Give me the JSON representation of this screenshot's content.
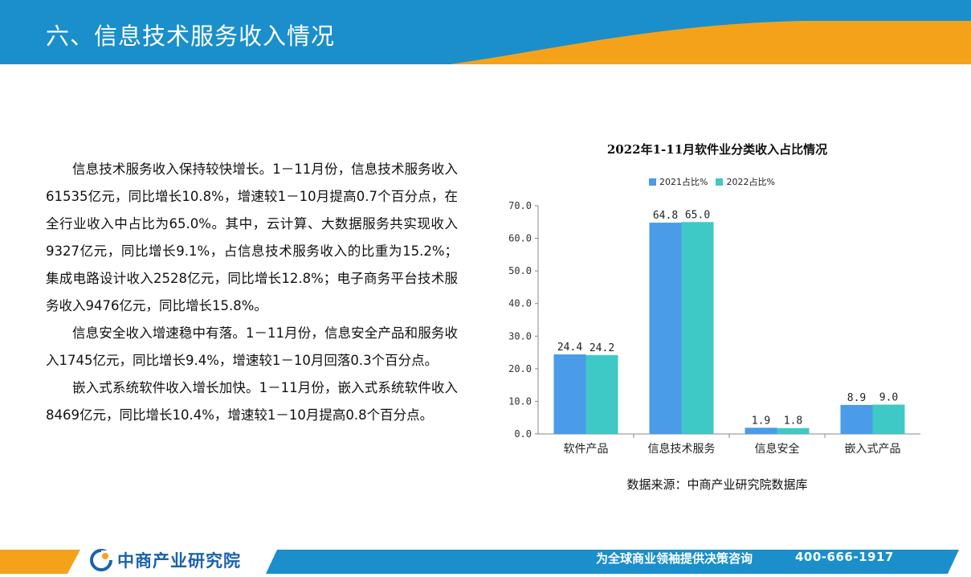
{
  "header": {
    "title": "六、信息技术服务收入情况"
  },
  "body": {
    "paragraphs": [
      "信息技术服务收入保持较快增长。1－11月份，信息技术服务收入61535亿元，同比增长10.8%，增速较1－10月提高0.7个百分点，在全行业收入中占比为65.0%。其中，云计算、大数据服务共实现收入9327亿元，同比增长9.1%，占信息技术服务收入的比重为15.2%；集成电路设计收入2528亿元，同比增长12.8%；电子商务平台技术服务收入9476亿元，同比增长15.8%。",
      "信息安全收入增速稳中有落。1－11月份，信息安全产品和服务收入1745亿元，同比增长9.4%，增速较1－10月回落0.3个百分点。",
      "嵌入式系统软件收入增长加快。1－11月份，嵌入式系统软件收入8469亿元，同比增长10.4%，增速较1－10月提高0.8个百分点。"
    ]
  },
  "chart_data": {
    "type": "bar",
    "title": "2022年1-11月软件业分类收入占比情况",
    "categories": [
      "软件产品",
      "信息技术服务",
      "信息安全",
      "嵌入式产品"
    ],
    "series": [
      {
        "name": "2021占比%",
        "values": [
          24.4,
          64.8,
          1.9,
          8.9
        ],
        "labels": [
          "24.4",
          "64.8",
          "1.9",
          "8.9"
        ],
        "color": "#4a9be8"
      },
      {
        "name": "2022占比%",
        "values": [
          24.2,
          65.0,
          1.8,
          9.0
        ],
        "labels": [
          "24.2",
          "65.0",
          "1.8",
          "9.0"
        ],
        "color": "#3ec9c6"
      }
    ],
    "ylim": [
      0,
      70
    ],
    "yticks": [
      "0.0",
      "10.0",
      "20.0",
      "30.0",
      "40.0",
      "50.0",
      "60.0",
      "70.0"
    ],
    "ytick_values": [
      0,
      10,
      20,
      30,
      40,
      50,
      60,
      70
    ],
    "legend_position": "top",
    "grid": false
  },
  "source": "数据来源：中商产业研究院数据库",
  "footer": {
    "logo_text": "中商产业研究院",
    "slogan": "为全球商业领袖提供决策咨询",
    "phone": "400-666-1917"
  },
  "colors": {
    "header_blue": "#1a8fcc",
    "accent_orange": "#f5a21b",
    "logo_blue": "#1a62ad"
  }
}
